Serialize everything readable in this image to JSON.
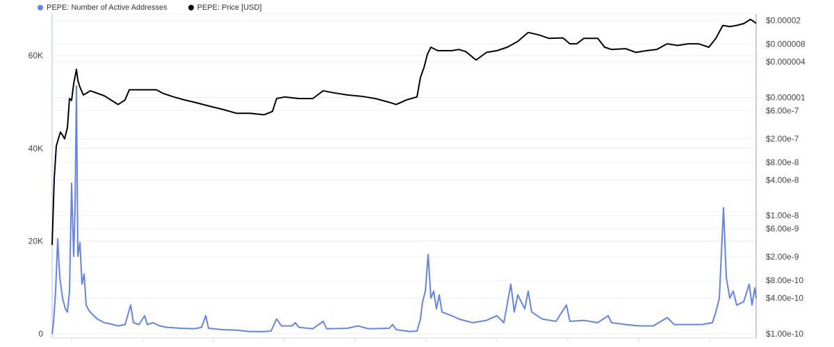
{
  "chart_data": {
    "type": "line",
    "title": "",
    "xlabel": "",
    "legend_position": "top-left",
    "grid": true,
    "x_tick_labels": [],
    "left_axis": {
      "label": "",
      "range": [
        0,
        69000
      ],
      "scale": "linear",
      "tick_labels": [
        "0",
        "20K",
        "40K",
        "60K"
      ],
      "tick_values": [
        0,
        20000,
        40000,
        60000
      ]
    },
    "right_axis": {
      "label": "",
      "scale": "log",
      "range": [
        1e-10,
        2.6e-05
      ],
      "tick_labels": [
        "$0.00002",
        "$0.000008",
        "$0.000004",
        "$0.000001",
        "$6.00e-7",
        "$2.00e-7",
        "$8.00e-8",
        "$4.00e-8",
        "$1.00e-8",
        "$6.00e-9",
        "$2.00e-9",
        "$8.00e-10",
        "$4.00e-10",
        "$1.00e-10"
      ],
      "tick_values": [
        2e-05,
        8e-06,
        4e-06,
        1e-06,
        6e-07,
        2e-07,
        8e-08,
        4e-08,
        1e-08,
        6e-09,
        2e-09,
        8e-10,
        4e-10,
        1e-10
      ]
    },
    "series": [
      {
        "name": "PEPE: Number of Active Addresses",
        "axis": "left",
        "color": "#6183f5",
        "points": [
          [
            0,
            0
          ],
          [
            2,
            2400
          ],
          [
            5,
            9200
          ],
          [
            8,
            20500
          ],
          [
            11,
            12200
          ],
          [
            15,
            7700
          ],
          [
            19,
            5400
          ],
          [
            22,
            4700
          ],
          [
            25,
            9200
          ],
          [
            28,
            32500
          ],
          [
            31,
            16700
          ],
          [
            33,
            27200
          ],
          [
            35,
            53500
          ],
          [
            37,
            16700
          ],
          [
            40,
            19700
          ],
          [
            43,
            10700
          ],
          [
            46,
            12900
          ],
          [
            49,
            6200
          ],
          [
            53,
            5000
          ],
          [
            60,
            3900
          ],
          [
            65,
            3200
          ],
          [
            75,
            2400
          ],
          [
            85,
            2100
          ],
          [
            95,
            1700
          ],
          [
            105,
            2000
          ],
          [
            113,
            6200
          ],
          [
            117,
            2400
          ],
          [
            125,
            2000
          ],
          [
            133,
            3900
          ],
          [
            137,
            2000
          ],
          [
            145,
            2400
          ],
          [
            155,
            1700
          ],
          [
            165,
            1400
          ],
          [
            185,
            1200
          ],
          [
            205,
            1100
          ],
          [
            215,
            1400
          ],
          [
            221,
            3900
          ],
          [
            225,
            1200
          ],
          [
            245,
            900
          ],
          [
            265,
            800
          ],
          [
            285,
            500
          ],
          [
            305,
            500
          ],
          [
            315,
            600
          ],
          [
            323,
            3200
          ],
          [
            330,
            1700
          ],
          [
            345,
            1700
          ],
          [
            350,
            2400
          ],
          [
            355,
            1400
          ],
          [
            375,
            1100
          ],
          [
            390,
            2700
          ],
          [
            395,
            1100
          ],
          [
            425,
            1200
          ],
          [
            440,
            1700
          ],
          [
            455,
            1100
          ],
          [
            485,
            1200
          ],
          [
            490,
            2000
          ],
          [
            495,
            900
          ],
          [
            515,
            500
          ],
          [
            525,
            600
          ],
          [
            530,
            3200
          ],
          [
            533,
            6900
          ],
          [
            537,
            9200
          ],
          [
            541,
            17100
          ],
          [
            545,
            7700
          ],
          [
            549,
            9200
          ],
          [
            553,
            5400
          ],
          [
            557,
            8400
          ],
          [
            561,
            4700
          ],
          [
            575,
            3900
          ],
          [
            585,
            3200
          ],
          [
            605,
            2400
          ],
          [
            625,
            2900
          ],
          [
            640,
            3900
          ],
          [
            650,
            2400
          ],
          [
            660,
            10700
          ],
          [
            665,
            4700
          ],
          [
            670,
            8400
          ],
          [
            675,
            6900
          ],
          [
            680,
            5400
          ],
          [
            685,
            9200
          ],
          [
            690,
            4700
          ],
          [
            705,
            3200
          ],
          [
            725,
            2700
          ],
          [
            740,
            6200
          ],
          [
            745,
            2700
          ],
          [
            765,
            2900
          ],
          [
            785,
            2400
          ],
          [
            800,
            3900
          ],
          [
            805,
            2400
          ],
          [
            825,
            2000
          ],
          [
            845,
            1700
          ],
          [
            865,
            1700
          ],
          [
            885,
            3500
          ],
          [
            895,
            2000
          ],
          [
            915,
            2000
          ],
          [
            935,
            2000
          ],
          [
            950,
            2400
          ],
          [
            955,
            4700
          ],
          [
            960,
            7700
          ],
          [
            966,
            27200
          ],
          [
            970,
            12200
          ],
          [
            975,
            7700
          ],
          [
            980,
            9200
          ],
          [
            985,
            6200
          ],
          [
            995,
            6900
          ],
          [
            1003,
            10700
          ],
          [
            1007,
            6200
          ],
          [
            1011,
            9900
          ],
          [
            1013,
            7700
          ]
        ]
      },
      {
        "name": "PEPE: Price [USD]",
        "axis": "right",
        "color": "#000000",
        "points": [
          [
            0,
            3.2e-09
          ],
          [
            3,
            4.2e-08
          ],
          [
            6,
            1.5e-07
          ],
          [
            9,
            2e-07
          ],
          [
            12,
            2.6e-07
          ],
          [
            15,
            2.3e-07
          ],
          [
            18,
            2e-07
          ],
          [
            22,
            3.1e-07
          ],
          [
            25,
            9.6e-07
          ],
          [
            28,
            8.9e-07
          ],
          [
            31,
            1.7e-06
          ],
          [
            35,
            3e-06
          ],
          [
            37,
            1.95e-06
          ],
          [
            40,
            1.5e-06
          ],
          [
            45,
            1.1e-06
          ],
          [
            55,
            1.3e-06
          ],
          [
            75,
            1.07e-06
          ],
          [
            95,
            7.6e-07
          ],
          [
            105,
            9.1e-07
          ],
          [
            111,
            1.35e-06
          ],
          [
            130,
            1.35e-06
          ],
          [
            150,
            1.35e-06
          ],
          [
            160,
            1.17e-06
          ],
          [
            175,
            1.02e-06
          ],
          [
            190,
            9.1e-07
          ],
          [
            205,
            8.3e-07
          ],
          [
            225,
            7.2e-07
          ],
          [
            245,
            6.3e-07
          ],
          [
            265,
            5.4e-07
          ],
          [
            285,
            5.4e-07
          ],
          [
            305,
            5.1e-07
          ],
          [
            317,
            5.8e-07
          ],
          [
            323,
            9.6e-07
          ],
          [
            335,
            1.02e-06
          ],
          [
            355,
            9.6e-07
          ],
          [
            375,
            9.6e-07
          ],
          [
            390,
            1.3e-06
          ],
          [
            405,
            1.2e-06
          ],
          [
            425,
            1.1e-06
          ],
          [
            445,
            1.05e-06
          ],
          [
            465,
            9.6e-07
          ],
          [
            485,
            8.3e-07
          ],
          [
            495,
            7.6e-07
          ],
          [
            510,
            9.1e-07
          ],
          [
            525,
            1.02e-06
          ],
          [
            530,
            2.2e-06
          ],
          [
            535,
            3.2e-06
          ],
          [
            540,
            5.4e-06
          ],
          [
            545,
            7.1e-06
          ],
          [
            555,
            6.2e-06
          ],
          [
            575,
            6.2e-06
          ],
          [
            585,
            6.5e-06
          ],
          [
            595,
            6e-06
          ],
          [
            610,
            4.3e-06
          ],
          [
            625,
            5.8e-06
          ],
          [
            640,
            6.2e-06
          ],
          [
            655,
            7.1e-06
          ],
          [
            670,
            8.9e-06
          ],
          [
            685,
            1.26e-05
          ],
          [
            700,
            1.15e-05
          ],
          [
            715,
            1e-05
          ],
          [
            735,
            1.02e-05
          ],
          [
            745,
            8.1e-06
          ],
          [
            755,
            8.1e-06
          ],
          [
            765,
            1e-05
          ],
          [
            785,
            1e-05
          ],
          [
            795,
            7.1e-06
          ],
          [
            805,
            6.5e-06
          ],
          [
            825,
            6.7e-06
          ],
          [
            840,
            5.8e-06
          ],
          [
            855,
            6.2e-06
          ],
          [
            870,
            6.5e-06
          ],
          [
            885,
            8.1e-06
          ],
          [
            900,
            7.6e-06
          ],
          [
            915,
            8.1e-06
          ],
          [
            930,
            8.1e-06
          ],
          [
            945,
            7.1e-06
          ],
          [
            955,
            1e-05
          ],
          [
            965,
            1.66e-05
          ],
          [
            975,
            1.58e-05
          ],
          [
            985,
            1.66e-05
          ],
          [
            995,
            1.78e-05
          ],
          [
            1005,
            2.1e-05
          ],
          [
            1013,
            1.8e-05
          ]
        ]
      }
    ]
  }
}
